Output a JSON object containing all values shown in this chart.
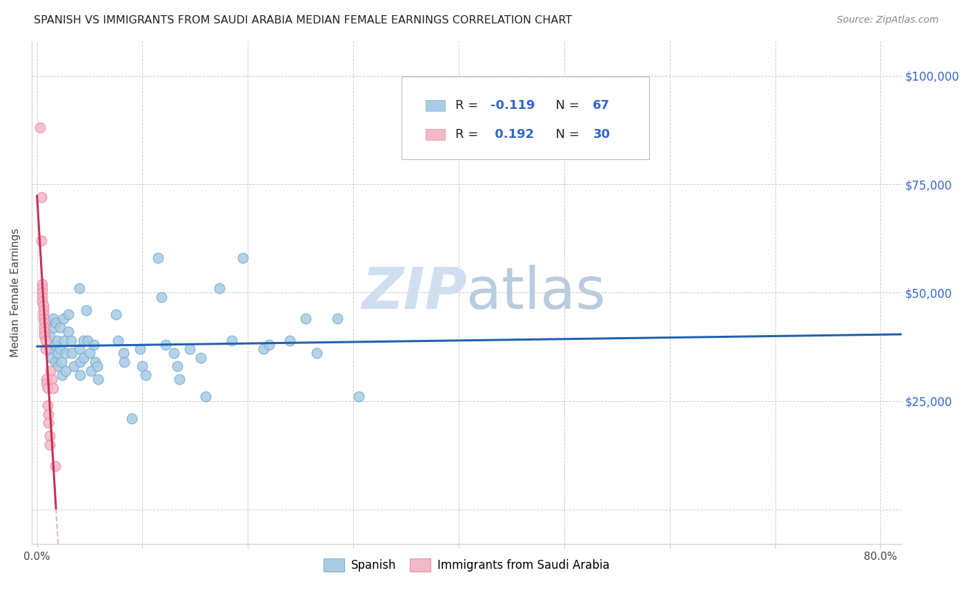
{
  "title": "SPANISH VS IMMIGRANTS FROM SAUDI ARABIA MEDIAN FEMALE EARNINGS CORRELATION CHART",
  "source": "Source: ZipAtlas.com",
  "ylabel": "Median Female Earnings",
  "x_ticks": [
    0.0,
    0.1,
    0.2,
    0.3,
    0.4,
    0.5,
    0.6,
    0.7,
    0.8
  ],
  "y_ticks": [
    0,
    25000,
    50000,
    75000,
    100000
  ],
  "y_tick_labels_right": [
    "",
    "$25,000",
    "$50,000",
    "$75,000",
    "$100,000"
  ],
  "xlim": [
    -0.005,
    0.82
  ],
  "ylim": [
    -8000,
    108000
  ],
  "legend1_label": "Spanish",
  "legend2_label": "Immigrants from Saudi Arabia",
  "R1": -0.119,
  "N1": 67,
  "R2": 0.192,
  "N2": 30,
  "blue_color": "#a8cce4",
  "pink_color": "#f4b8c8",
  "blue_edge_color": "#7ab0d0",
  "pink_edge_color": "#e890aa",
  "blue_line_color": "#2060b0",
  "pink_line_color": "#c83050",
  "pink_dash_color": "#e8a0b0",
  "watermark_color": "#d0dff0",
  "background_color": "#ffffff",
  "grid_color": "#cccccc",
  "blue_scatter": [
    [
      0.008,
      40000
    ],
    [
      0.01,
      43000
    ],
    [
      0.012,
      40000
    ],
    [
      0.013,
      37000
    ],
    [
      0.014,
      35000
    ],
    [
      0.015,
      44000
    ],
    [
      0.016,
      42000
    ],
    [
      0.017,
      38000
    ],
    [
      0.017,
      34000
    ],
    [
      0.018,
      43000
    ],
    [
      0.019,
      39000
    ],
    [
      0.019,
      36000
    ],
    [
      0.02,
      33000
    ],
    [
      0.022,
      42000
    ],
    [
      0.022,
      37000
    ],
    [
      0.023,
      34000
    ],
    [
      0.024,
      31000
    ],
    [
      0.025,
      44000
    ],
    [
      0.026,
      39000
    ],
    [
      0.027,
      36000
    ],
    [
      0.027,
      32000
    ],
    [
      0.03,
      45000
    ],
    [
      0.03,
      41000
    ],
    [
      0.032,
      39000
    ],
    [
      0.033,
      36000
    ],
    [
      0.035,
      33000
    ],
    [
      0.04,
      51000
    ],
    [
      0.04,
      37000
    ],
    [
      0.041,
      34000
    ],
    [
      0.041,
      31000
    ],
    [
      0.044,
      39000
    ],
    [
      0.044,
      35000
    ],
    [
      0.047,
      46000
    ],
    [
      0.048,
      39000
    ],
    [
      0.05,
      36000
    ],
    [
      0.051,
      32000
    ],
    [
      0.054,
      38000
    ],
    [
      0.055,
      34000
    ],
    [
      0.057,
      33000
    ],
    [
      0.058,
      30000
    ],
    [
      0.075,
      45000
    ],
    [
      0.077,
      39000
    ],
    [
      0.082,
      36000
    ],
    [
      0.083,
      34000
    ],
    [
      0.09,
      21000
    ],
    [
      0.098,
      37000
    ],
    [
      0.1,
      33000
    ],
    [
      0.103,
      31000
    ],
    [
      0.115,
      58000
    ],
    [
      0.118,
      49000
    ],
    [
      0.122,
      38000
    ],
    [
      0.13,
      36000
    ],
    [
      0.133,
      33000
    ],
    [
      0.135,
      30000
    ],
    [
      0.145,
      37000
    ],
    [
      0.155,
      35000
    ],
    [
      0.16,
      26000
    ],
    [
      0.173,
      51000
    ],
    [
      0.185,
      39000
    ],
    [
      0.195,
      58000
    ],
    [
      0.215,
      37000
    ],
    [
      0.22,
      38000
    ],
    [
      0.24,
      39000
    ],
    [
      0.255,
      44000
    ],
    [
      0.265,
      36000
    ],
    [
      0.285,
      44000
    ],
    [
      0.305,
      26000
    ]
  ],
  "pink_scatter": [
    [
      0.003,
      88000
    ],
    [
      0.004,
      72000
    ],
    [
      0.004,
      62000
    ],
    [
      0.005,
      52000
    ],
    [
      0.005,
      51000
    ],
    [
      0.005,
      50000
    ],
    [
      0.005,
      49000
    ],
    [
      0.005,
      48000
    ],
    [
      0.006,
      47000
    ],
    [
      0.006,
      46000
    ],
    [
      0.006,
      45000
    ],
    [
      0.006,
      44000
    ],
    [
      0.007,
      43000
    ],
    [
      0.007,
      42000
    ],
    [
      0.007,
      41000
    ],
    [
      0.007,
      40000
    ],
    [
      0.008,
      39000
    ],
    [
      0.008,
      37000
    ],
    [
      0.009,
      30000
    ],
    [
      0.009,
      29000
    ],
    [
      0.01,
      28000
    ],
    [
      0.01,
      24000
    ],
    [
      0.011,
      22000
    ],
    [
      0.011,
      20000
    ],
    [
      0.012,
      17000
    ],
    [
      0.012,
      15000
    ],
    [
      0.013,
      32000
    ],
    [
      0.014,
      30000
    ],
    [
      0.015,
      28000
    ],
    [
      0.017,
      10000
    ]
  ]
}
